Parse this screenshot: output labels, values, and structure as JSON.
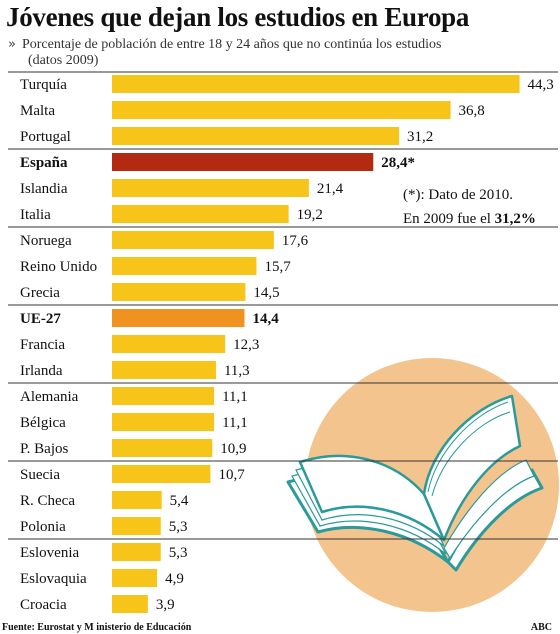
{
  "chart_data": {
    "type": "bar",
    "title": "Jóvenes que dejan los estudios en Europa",
    "subtitle": "Porcentaje de población de entre 18 y 24 años que no continúa los estudios",
    "subtitle_cont": "(datos 2009)",
    "orientation": "horizontal",
    "categories": [
      "Turquía",
      "Malta",
      "Portugal",
      "España",
      "Islandia",
      "Italia",
      "Noruega",
      "Reino Unido",
      "Grecia",
      "UE-27",
      "Francia",
      "Irlanda",
      "Alemania",
      "Bélgica",
      "P. Bajos",
      "Suecia",
      "R. Checa",
      "Polonia",
      "Eslovenia",
      "Eslovaquia",
      "Croacia"
    ],
    "values": [
      44.3,
      36.8,
      31.2,
      28.4,
      21.4,
      19.2,
      17.6,
      15.7,
      14.5,
      14.4,
      12.3,
      11.3,
      11.1,
      11.1,
      10.9,
      10.7,
      5.4,
      5.3,
      5.3,
      4.9,
      3.9
    ],
    "value_labels": [
      "44,3",
      "36,8",
      "31,2",
      "28,4*",
      "21,4",
      "19,2",
      "17,6",
      "15,7",
      "14,5",
      "14,4",
      "12,3",
      "11,3",
      "11,1",
      "11,1",
      "10,9",
      "10,7",
      "5,4",
      "5,3",
      "5,3",
      "4,9",
      "3,9"
    ],
    "highlight": {
      "España": "#b22a12",
      "UE-27": "#f0921f"
    },
    "bold_rows": [
      "España",
      "UE-27"
    ],
    "xlim": [
      0,
      46
    ],
    "colors": {
      "bar": "#f7c41a",
      "spain": "#b22a12",
      "eu": "#f0921f",
      "circle": "#f3c48e",
      "book_stroke": "#2a9a9a"
    },
    "note_line1": "(*): Dato de 2010.",
    "note_line2_prefix": "En 2009 fue el ",
    "note_line2_value": "31,2%",
    "source": "Fuente: Eurostat y M  inisterio de Educación",
    "credit": "ABC",
    "illustration": "open-book-icon"
  }
}
